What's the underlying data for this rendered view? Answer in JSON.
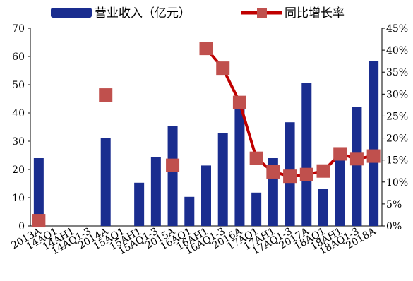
{
  "chart_data": {
    "type": "bar+line",
    "categories": [
      "2013A",
      "14AQ1",
      "14AH1",
      "14AQ1-3",
      "2014A",
      "15AQ1",
      "15AH1",
      "15AQ1-3",
      "2015A",
      "16AQ1",
      "16AH1",
      "16AQ1-3",
      "2016A",
      "17AQ1",
      "17AH1",
      "17AQ1-3",
      "2017A",
      "18AQ1",
      "18AH1",
      "18AQ1-3",
      "2018A"
    ],
    "series": [
      {
        "name": "营业收入（亿元）",
        "type": "bar",
        "axis": "left",
        "color": "#1a2d8f",
        "values": [
          24,
          null,
          null,
          null,
          31,
          null,
          15.3,
          24.3,
          35.3,
          10.3,
          21.4,
          33,
          41.6,
          11.8,
          24,
          36.7,
          50.5,
          13.2,
          25.8,
          42.2,
          58.4
        ]
      },
      {
        "name": "同比增长率",
        "type": "line",
        "axis": "right",
        "color": "#c00000",
        "marker_color": "#c0504d",
        "values": [
          0.012,
          null,
          null,
          null,
          0.298,
          null,
          null,
          null,
          0.138,
          null,
          0.404,
          0.359,
          0.281,
          0.154,
          0.123,
          0.113,
          0.117,
          0.125,
          0.164,
          0.153,
          0.159
        ]
      }
    ],
    "y_left": {
      "ylim": [
        0,
        70
      ],
      "ticks": [
        "0",
        "10",
        "20",
        "30",
        "40",
        "50",
        "60",
        "70"
      ]
    },
    "y_right": {
      "ylim": [
        0,
        0.45
      ],
      "ticks": [
        "0%",
        "5%",
        "10%",
        "15%",
        "20%",
        "25%",
        "30%",
        "35%",
        "40%",
        "45%"
      ]
    },
    "legend": [
      {
        "label": "营业收入（亿元）",
        "kind": "bar"
      },
      {
        "label": "同比增长率",
        "kind": "line"
      }
    ],
    "legend_position": "top",
    "grid": false,
    "xlabel": "",
    "ylabel": ""
  }
}
